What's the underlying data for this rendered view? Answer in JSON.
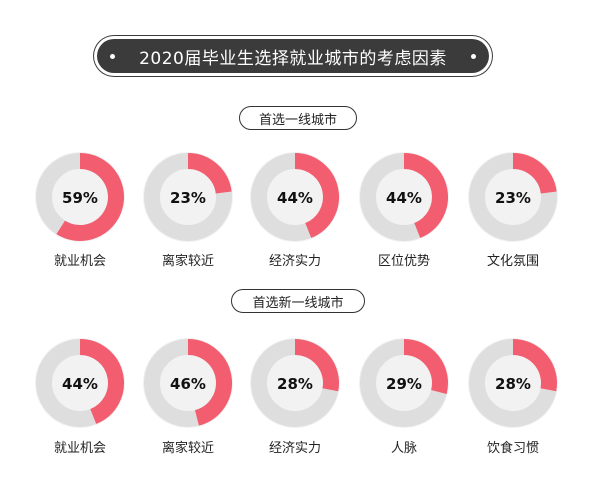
{
  "title": "2020届毕业生选择就业城市的考虑因素",
  "colors": {
    "accent": "#f25d6f",
    "track": "#dedede",
    "outer_disc": "#f2f2f2",
    "pill": "#3b3b3b"
  },
  "chart_data": [
    {
      "type": "pie",
      "title": "首选一线城市",
      "categories": [
        "就业机会",
        "离家较近",
        "经济实力",
        "区位优势",
        "文化氛围"
      ],
      "values": [
        59,
        23,
        44,
        44,
        23
      ],
      "value_labels": [
        "59%",
        "23%",
        "44%",
        "44%",
        "23%"
      ]
    },
    {
      "type": "pie",
      "title": "首选新一线城市",
      "categories": [
        "就业机会",
        "离家较近",
        "经济实力",
        "人脉",
        "饮食习惯"
      ],
      "values": [
        44,
        46,
        28,
        29,
        28
      ],
      "value_labels": [
        "44%",
        "46%",
        "28%",
        "29%",
        "28%"
      ]
    }
  ]
}
